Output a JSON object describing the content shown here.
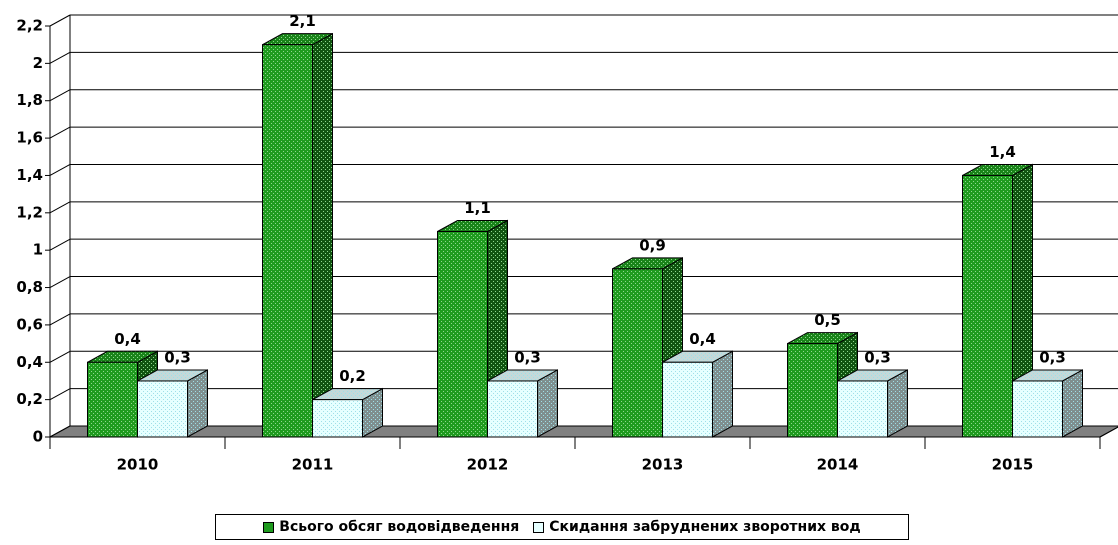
{
  "chart_data": {
    "type": "bar3d",
    "categories": [
      "2010",
      "2011",
      "2012",
      "2013",
      "2014",
      "2015"
    ],
    "series": [
      {
        "name": "Всього обсяг водовідведення",
        "color": "#1f9b1f",
        "values": [
          0.4,
          2.1,
          1.1,
          0.9,
          0.5,
          1.4
        ],
        "value_labels": [
          "0,4",
          "2,1",
          "1,1",
          "0,9",
          "0,5",
          "1,4"
        ]
      },
      {
        "name": "Скидання забруднених зворотних вод",
        "color": "#e6ffff",
        "values": [
          0.3,
          0.2,
          0.3,
          0.4,
          0.3,
          0.3
        ],
        "value_labels": [
          "0,3",
          "0,2",
          "0,3",
          "0,4",
          "0,3",
          "0,3"
        ]
      }
    ],
    "ylim": [
      0,
      2.2
    ],
    "yticks": [
      0,
      {
        "value": 0.2,
        "label": "0,2"
      },
      {
        "value": 0.4,
        "label": "0,4"
      },
      {
        "value": 0.6,
        "label": "0,6"
      },
      {
        "value": 0.8,
        "label": "0,8"
      },
      1,
      {
        "value": 1.2,
        "label": "1,2"
      },
      {
        "value": 1.4,
        "label": "1,4"
      },
      {
        "value": 1.6,
        "label": "1,6"
      },
      {
        "value": 1.8,
        "label": "1,8"
      },
      2,
      {
        "value": 2.2,
        "label": "2,2"
      }
    ],
    "grid": true,
    "legend": "bottom"
  }
}
